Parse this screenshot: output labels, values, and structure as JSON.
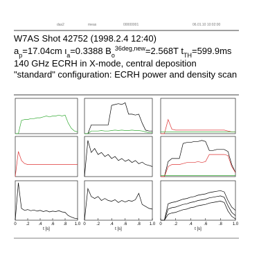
{
  "header": {
    "labels": [
      "das2",
      "meas",
      "00000001",
      "06.01.10  10:02:00"
    ],
    "title": "W7AS Shot 42752 (1998.2.4 12:40)",
    "params": [
      {
        "text": "a",
        "pos": "base"
      },
      {
        "text": "p",
        "pos": "sub"
      },
      {
        "text": "=17.04cm  ι",
        "pos": "base"
      },
      {
        "text": "a",
        "pos": "sub"
      },
      {
        "text": "=0.3388  B",
        "pos": "base"
      },
      {
        "text": "o",
        "pos": "sub"
      },
      {
        "text": "36deg,new",
        "pos": "sup"
      },
      {
        "text": "=2.568T  t",
        "pos": "base"
      },
      {
        "text": "TH",
        "pos": "sub"
      },
      {
        "text": "=599.9ms",
        "pos": "base"
      }
    ],
    "line3": "140 GHz ECRH in X-mode, central deposition",
    "line4": "\"standard\" configuration:  ECRH power and density scan"
  },
  "chart_data": [
    {
      "type": "line",
      "xlim": [
        0,
        1
      ],
      "ylim": [
        0,
        4
      ],
      "x": [
        0,
        0.05,
        0.1,
        0.15,
        0.2,
        0.25,
        0.3,
        0.35,
        0.4,
        0.45,
        0.5,
        0.55,
        0.6,
        0.65,
        0.7,
        0.75,
        0.8,
        0.85,
        0.9,
        0.95,
        1
      ],
      "series": [
        {
          "color": "#33aa33",
          "values": [
            0,
            0,
            1.5,
            1.6,
            1.6,
            1.7,
            1.7,
            1.8,
            1.8,
            1.9,
            2.0,
            1.9,
            2.0,
            2.0,
            2.1,
            2.0,
            2.1,
            1.2,
            0.6,
            0.3,
            0.2
          ]
        }
      ]
    },
    {
      "type": "line",
      "xlim": [
        0,
        1
      ],
      "ylim": [
        0,
        4
      ],
      "x": [
        0,
        0.05,
        0.1,
        0.15,
        0.2,
        0.25,
        0.3,
        0.35,
        0.4,
        0.45,
        0.5,
        0.55,
        0.6,
        0.65,
        0.7,
        0.75,
        0.8,
        0.85,
        0.9,
        0.95,
        1
      ],
      "series": [
        {
          "color": "#000000",
          "values": [
            0,
            0,
            1.0,
            1.0,
            1.0,
            1.0,
            1.0,
            1.0,
            3.2,
            3.3,
            3.4,
            3.3,
            3.5,
            2.2,
            2.2,
            2.1,
            2.2,
            1.2,
            0.4,
            0.3,
            0.3
          ]
        },
        {
          "color": "#33aa33",
          "values": [
            0,
            0,
            0.3,
            0.3,
            0.3,
            0.35,
            0.3,
            0.3,
            0.35,
            0.4,
            0.35,
            0.4,
            0.35,
            0.35,
            0.4,
            0.35,
            0.35,
            0.3,
            0.2,
            0.1,
            0.1
          ]
        }
      ]
    },
    {
      "type": "line",
      "xlim": [
        0,
        1
      ],
      "ylim": [
        0,
        4
      ],
      "x": [
        0,
        0.05,
        0.1,
        0.15,
        0.2,
        0.25,
        0.3,
        0.35,
        0.4,
        0.45,
        0.5,
        0.55,
        0.6,
        0.65,
        0.7,
        0.75,
        0.8,
        0.85,
        0.9,
        0.95,
        1
      ],
      "series": [
        {
          "color": "#dd3333",
          "values": [
            0,
            0,
            1.6,
            0.5,
            0.4,
            0.4,
            0.4,
            0.4,
            0.4,
            0.4,
            0.4,
            0.4,
            0.4,
            0.4,
            0.4,
            0.4,
            0.4,
            0.4,
            0.3,
            0.2,
            0.2
          ]
        },
        {
          "color": "#33aa33",
          "values": [
            0.2,
            0.2,
            0.2,
            0.2,
            0.2,
            0.2,
            0.2,
            0.2,
            0.2,
            0.2,
            0.2,
            0.2,
            0.2,
            0.2,
            0.2,
            0.2,
            0.2,
            0.2,
            0.2,
            0.2,
            0.2
          ]
        }
      ]
    },
    {
      "type": "line",
      "xlim": [
        0,
        1
      ],
      "ylim": [
        0,
        4
      ],
      "x": [
        0,
        0.05,
        0.1,
        0.15,
        0.2,
        0.25,
        0.3,
        0.35,
        0.4,
        0.45,
        0.5,
        0.55,
        0.6,
        0.65,
        0.7,
        0.75,
        0.8,
        0.85,
        0.9,
        0.95,
        1
      ],
      "series": [
        {
          "color": "#dd3333",
          "values": [
            0,
            2.5,
            1.6,
            1.3,
            1.2,
            1.2,
            1.2,
            1.2,
            1.2,
            1.2,
            1.2,
            1.2,
            1.2,
            1.2,
            1.2,
            1.2,
            1.2,
            1.2,
            1.2,
            1.2,
            1.2
          ]
        }
      ]
    },
    {
      "type": "line",
      "xlim": [
        0,
        1
      ],
      "ylim": [
        0,
        10
      ],
      "x": [
        0,
        0.05,
        0.1,
        0.15,
        0.2,
        0.25,
        0.3,
        0.35,
        0.4,
        0.45,
        0.5,
        0.55,
        0.6,
        0.65,
        0.7,
        0.75,
        0.8,
        0.85,
        0.9,
        0.95,
        1
      ],
      "series": [
        {
          "color": "#000000",
          "values": [
            0,
            9,
            6,
            7,
            5.5,
            6,
            5,
            5.5,
            4.5,
            5,
            4,
            4.5,
            3.8,
            4.2,
            3.5,
            4,
            3.2,
            3.6,
            3,
            2.8,
            2.5
          ]
        }
      ]
    },
    {
      "type": "line",
      "xlim": [
        0,
        1
      ],
      "ylim": [
        0,
        4
      ],
      "x": [
        0,
        0.05,
        0.1,
        0.15,
        0.2,
        0.25,
        0.3,
        0.35,
        0.4,
        0.45,
        0.5,
        0.55,
        0.6,
        0.65,
        0.7,
        0.75,
        0.8,
        0.85,
        0.9,
        0.95,
        1
      ],
      "series": [
        {
          "color": "#000000",
          "values": [
            0,
            0,
            1.5,
            1.8,
            1.8,
            1.8,
            3.3,
            3.4,
            3.4,
            3.5,
            3.5,
            3.6,
            3.5,
            2.6,
            2.6,
            2.7,
            2.7,
            2.7,
            2.5,
            1.2,
            0.4
          ]
        },
        {
          "color": "#dd3333",
          "values": [
            0,
            0,
            1.0,
            1.2,
            1.2,
            1.2,
            1.3,
            1.4,
            1.4,
            1.4,
            1.5,
            1.4,
            1.5,
            2.2,
            2.2,
            2.2,
            2.2,
            2.2,
            2.1,
            1.0,
            0.4
          ]
        },
        {
          "color": "#33aa33",
          "values": [
            0.1,
            0.1,
            0.1,
            0.1,
            0.1,
            0.1,
            0.1,
            0.1,
            0.1,
            0.1,
            0.1,
            0.1,
            0.1,
            0.1,
            0.1,
            0.1,
            0.1,
            0.1,
            0.1,
            0.1,
            0.1
          ]
        }
      ]
    },
    {
      "type": "line",
      "xlim": [
        0,
        1
      ],
      "ylim": [
        0,
        10
      ],
      "xlabel": "t [s]",
      "xticks": [
        0,
        {
          "value": 0.2,
          "label": ".2"
        },
        {
          "value": 0.4,
          "label": ".4"
        },
        {
          "value": 0.6,
          "label": ".6"
        },
        {
          "value": 0.8,
          "label": ".8"
        },
        {
          "value": 1,
          "label": "1.0"
        }
      ],
      "x": [
        0,
        0.05,
        0.1,
        0.15,
        0.2,
        0.25,
        0.3,
        0.35,
        0.4,
        0.45,
        0.5,
        0.55,
        0.6,
        0.65,
        0.7,
        0.75,
        0.8,
        0.85,
        0.9,
        0.95,
        1
      ],
      "series": [
        {
          "color": "#000000",
          "values": [
            0,
            9.5,
            3,
            2.5,
            2.7,
            2.4,
            2.6,
            2.3,
            2.5,
            2.2,
            2.4,
            2.1,
            2.3,
            2.2,
            2.4,
            2.1,
            2.0,
            1.2,
            0.8,
            0.5,
            0.4
          ]
        }
      ]
    },
    {
      "type": "line",
      "xlim": [
        0,
        1
      ],
      "ylim": [
        0,
        10
      ],
      "xlabel": "t [s]",
      "xticks": [
        0,
        {
          "value": 0.2,
          "label": ".2"
        },
        {
          "value": 0.4,
          "label": ".4"
        },
        {
          "value": 0.6,
          "label": ".6"
        },
        {
          "value": 0.8,
          "label": ".8"
        },
        {
          "value": 1,
          "label": "1.0"
        }
      ],
      "x": [
        0,
        0.05,
        0.1,
        0.15,
        0.2,
        0.25,
        0.3,
        0.35,
        0.4,
        0.45,
        0.5,
        0.55,
        0.6,
        0.65,
        0.7,
        0.75,
        0.8,
        0.85,
        0.9,
        0.95,
        1
      ],
      "series": [
        {
          "color": "#000000",
          "values": [
            0,
            8,
            6,
            5.5,
            6,
            5,
            5.5,
            5,
            4.8,
            5.2,
            4.5,
            5,
            4.6,
            5,
            4.8,
            5.2,
            6.8,
            4,
            3.5,
            3,
            2.8
          ]
        }
      ]
    },
    {
      "type": "line",
      "xlim": [
        0,
        1
      ],
      "ylim": [
        0,
        6
      ],
      "xlabel": "t [s]",
      "xticks": [
        0,
        {
          "value": 0.2,
          "label": ".2"
        },
        {
          "value": 0.4,
          "label": ".4"
        },
        {
          "value": 0.6,
          "label": ".6"
        },
        {
          "value": 0.8,
          "label": ".8"
        },
        {
          "value": 1,
          "label": "1.0"
        }
      ],
      "x": [
        0,
        0.05,
        0.1,
        0.15,
        0.2,
        0.25,
        0.3,
        0.35,
        0.4,
        0.45,
        0.5,
        0.55,
        0.6,
        0.65,
        0.7,
        0.75,
        0.8,
        0.85,
        0.9,
        0.95,
        1
      ],
      "series": [
        {
          "color": "#000000",
          "values": [
            0,
            0,
            2.5,
            2.7,
            2.8,
            3,
            3.2,
            3.3,
            3.5,
            3.6,
            3.8,
            3.9,
            4,
            4.2,
            4.3,
            4.4,
            4.5,
            4.3,
            3,
            2,
            1.5
          ]
        },
        {
          "color": "#000000",
          "values": [
            0,
            0,
            1.7,
            1.9,
            2.0,
            2.2,
            2.4,
            2.5,
            2.7,
            2.8,
            3.0,
            3.1,
            3.2,
            3.4,
            3.5,
            3.6,
            3.7,
            3.5,
            2.2,
            1.2,
            0.7
          ]
        },
        {
          "color": "#000000",
          "values": [
            0,
            0,
            0.9,
            1.1,
            1.2,
            1.4,
            1.6,
            1.7,
            1.9,
            2.0,
            2.2,
            2.3,
            2.4,
            2.6,
            2.7,
            2.8,
            2.9,
            2.7,
            1.4,
            0.6,
            0.2
          ]
        }
      ]
    }
  ]
}
